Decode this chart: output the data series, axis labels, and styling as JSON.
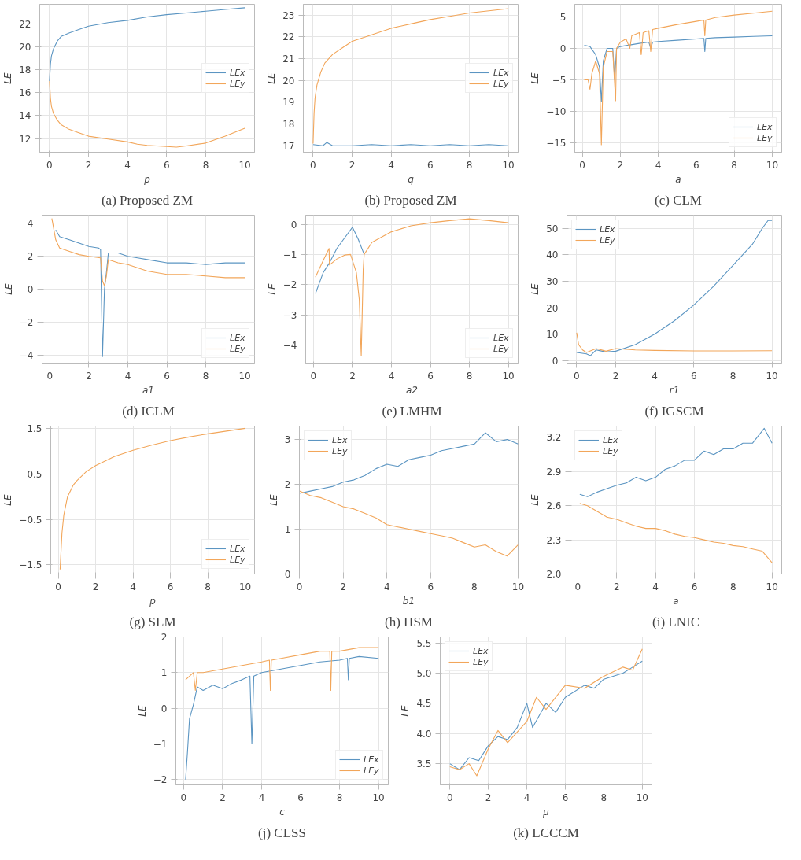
{
  "chart_data": [
    {
      "type": "line",
      "title": "(a) Proposed ZM",
      "xlabel": "p",
      "ylabel": "LE",
      "xlim": [
        -0.5,
        10.5
      ],
      "ylim": [
        10.8,
        23.7
      ],
      "xticks": [
        0,
        2,
        4,
        6,
        8,
        10
      ],
      "yticks": [
        12,
        14,
        16,
        18,
        20,
        22
      ],
      "grid": true,
      "legend": "right",
      "series": [
        {
          "name": "LEx",
          "color": "#5b95c2",
          "x": [
            0,
            0.05,
            0.1,
            0.2,
            0.4,
            0.6,
            1,
            1.5,
            2,
            3,
            4,
            5,
            6,
            7,
            8,
            9,
            10
          ],
          "values": [
            17,
            18.5,
            19.2,
            19.8,
            20.5,
            20.9,
            21.2,
            21.5,
            21.8,
            22.1,
            22.3,
            22.6,
            22.8,
            22.95,
            23.1,
            23.25,
            23.4
          ]
        },
        {
          "name": "LEy",
          "color": "#f2a65a",
          "x": [
            0,
            0.05,
            0.1,
            0.2,
            0.4,
            0.6,
            1,
            1.5,
            2,
            3,
            4,
            4.5,
            5,
            6,
            6.5,
            7,
            8,
            9,
            10
          ],
          "values": [
            17,
            15.5,
            14.8,
            14.2,
            13.6,
            13.2,
            12.8,
            12.5,
            12.2,
            11.95,
            11.7,
            11.5,
            11.4,
            11.3,
            11.25,
            11.35,
            11.6,
            12.2,
            12.9
          ]
        }
      ]
    },
    {
      "type": "line",
      "title": "(b) Proposed ZM",
      "xlabel": "q",
      "ylabel": "LE",
      "xlim": [
        -0.5,
        10.5
      ],
      "ylim": [
        16.7,
        23.5
      ],
      "xticks": [
        0,
        2,
        4,
        6,
        8,
        10
      ],
      "yticks": [
        17,
        18,
        19,
        20,
        21,
        22,
        23
      ],
      "grid": true,
      "legend": "right",
      "series": [
        {
          "name": "LEx",
          "color": "#5b95c2",
          "x": [
            0,
            0.5,
            0.7,
            1,
            2,
            3,
            4,
            5,
            6,
            7,
            8,
            9,
            10
          ],
          "values": [
            17.05,
            17.0,
            17.15,
            17.0,
            17.0,
            17.05,
            17.0,
            17.05,
            17.0,
            17.05,
            17.0,
            17.05,
            17.0
          ]
        },
        {
          "name": "LEy",
          "color": "#f2a65a",
          "x": [
            0,
            0.05,
            0.1,
            0.2,
            0.4,
            0.6,
            1,
            1.5,
            2,
            3,
            4,
            5,
            6,
            7,
            8,
            9,
            10
          ],
          "values": [
            17.1,
            18.5,
            19.2,
            19.8,
            20.4,
            20.8,
            21.2,
            21.5,
            21.8,
            22.1,
            22.4,
            22.6,
            22.8,
            22.95,
            23.1,
            23.2,
            23.3
          ]
        }
      ]
    },
    {
      "type": "line",
      "title": "(c) CLM",
      "xlabel": "a",
      "ylabel": "LE",
      "xlim": [
        -0.4,
        10.5
      ],
      "ylim": [
        -16.5,
        7
      ],
      "xticks": [
        0,
        2,
        4,
        6,
        8,
        10
      ],
      "yticks": [
        -15,
        -10,
        -5,
        0,
        5
      ],
      "grid": true,
      "legend": "bottom right",
      "series": [
        {
          "name": "LEx",
          "color": "#5b95c2",
          "x": [
            0.1,
            0.4,
            0.7,
            0.9,
            1.0,
            1.1,
            1.3,
            1.6,
            1.7,
            1.8,
            2,
            3,
            3.5,
            3.6,
            3.7,
            4,
            5,
            6,
            6.4,
            6.45,
            6.5,
            7,
            8,
            9,
            10
          ],
          "values": [
            0.5,
            0.3,
            -1,
            -3,
            -8.5,
            -2,
            0,
            0,
            -5,
            0,
            0.3,
            0.8,
            1.0,
            0,
            1.0,
            1.1,
            1.3,
            1.5,
            1.6,
            -0.5,
            1.6,
            1.7,
            1.8,
            1.9,
            2.0
          ]
        },
        {
          "name": "LEy",
          "color": "#f2a65a",
          "x": [
            0.1,
            0.3,
            0.4,
            0.5,
            0.7,
            0.9,
            1.0,
            1.1,
            1.3,
            1.6,
            1.75,
            1.8,
            2,
            2.3,
            2.5,
            2.6,
            3,
            3.1,
            3.2,
            3.5,
            3.6,
            3.7,
            4,
            5,
            6,
            6.4,
            6.45,
            6.5,
            7,
            8,
            9,
            10
          ],
          "values": [
            -5,
            -5,
            -6.5,
            -4,
            -2,
            -4,
            -15.3,
            -3,
            -0.5,
            -0.5,
            -8.3,
            0,
            1,
            1.5,
            0,
            2,
            2.5,
            -1,
            2.5,
            2.8,
            -0.5,
            3,
            3.2,
            3.8,
            4.3,
            4.5,
            2,
            4.5,
            4.9,
            5.3,
            5.6,
            5.9
          ]
        }
      ]
    },
    {
      "type": "line",
      "title": "(d) ICLM",
      "xlabel": "a1",
      "ylabel": "LE",
      "xlim": [
        -0.4,
        10.5
      ],
      "ylim": [
        -4.5,
        4.5
      ],
      "xticks": [
        0,
        2,
        4,
        6,
        8,
        10
      ],
      "yticks": [
        -4,
        -2,
        0,
        2,
        4
      ],
      "grid": true,
      "legend": "bottom right",
      "series": [
        {
          "name": "LEx",
          "color": "#5b95c2",
          "x": [
            0.3,
            0.5,
            1,
            1.5,
            2,
            2.5,
            2.6,
            2.7,
            2.8,
            2.9,
            3.0,
            3.5,
            4,
            4.5,
            5,
            6,
            7,
            8,
            9,
            10
          ],
          "values": [
            3.6,
            3.2,
            3.0,
            2.8,
            2.6,
            2.5,
            2.4,
            -4.1,
            0,
            1.0,
            2.2,
            2.2,
            2.0,
            1.9,
            1.8,
            1.6,
            1.6,
            1.5,
            1.6,
            1.6
          ]
        },
        {
          "name": "LEy",
          "color": "#f2a65a",
          "x": [
            0.1,
            0.3,
            0.5,
            1,
            1.5,
            2,
            2.6,
            2.7,
            2.8,
            2.9,
            3.0,
            3.5,
            4,
            5,
            6,
            7,
            8,
            9,
            10
          ],
          "values": [
            4.3,
            3.0,
            2.5,
            2.3,
            2.1,
            2.0,
            1.9,
            0.5,
            0.2,
            0.8,
            1.8,
            1.6,
            1.5,
            1.1,
            0.9,
            0.9,
            0.8,
            0.7,
            0.7
          ]
        }
      ]
    },
    {
      "type": "line",
      "title": "(e) LMHM",
      "xlabel": "a2",
      "ylabel": "LE",
      "xlim": [
        -0.4,
        10.5
      ],
      "ylim": [
        -4.6,
        0.3
      ],
      "xticks": [
        0,
        2,
        4,
        6,
        8,
        10
      ],
      "yticks": [
        -4,
        -3,
        -2,
        -1,
        0
      ],
      "grid": true,
      "legend": "bottom right",
      "series": [
        {
          "name": "LEx",
          "color": "#5b95c2",
          "x": [
            0.1,
            0.5,
            0.8,
            1.2,
            1.6,
            2.0,
            2.3,
            2.6
          ],
          "values": [
            -2.3,
            -1.6,
            -1.3,
            -0.8,
            -0.45,
            -0.1,
            -0.5,
            -1.0
          ]
        },
        {
          "name": "LEy",
          "color": "#f2a65a",
          "x": [
            0.1,
            0.5,
            0.8,
            0.82,
            1.2,
            1.6,
            1.9,
            2.2,
            2.35,
            2.45,
            2.55,
            2.6,
            3,
            4,
            5,
            6,
            7,
            8,
            9,
            10
          ],
          "values": [
            -1.75,
            -1.2,
            -0.8,
            -1.35,
            -1.15,
            -1.02,
            -1.0,
            -1.6,
            -2.5,
            -4.35,
            -1.5,
            -1.0,
            -0.6,
            -0.25,
            -0.05,
            0.05,
            0.12,
            0.18,
            0.12,
            0.05
          ]
        }
      ]
    },
    {
      "type": "line",
      "title": "(f) IGSCM",
      "xlabel": "r1",
      "ylabel": "LE",
      "xlim": [
        -0.5,
        10.5
      ],
      "ylim": [
        -1,
        55
      ],
      "xticks": [
        0,
        2,
        4,
        6,
        8,
        10
      ],
      "yticks": [
        0,
        10,
        20,
        30,
        40,
        50
      ],
      "grid": true,
      "legend": "top left",
      "series": [
        {
          "name": "LEx",
          "color": "#5b95c2",
          "x": [
            0,
            0.5,
            0.7,
            1,
            1.5,
            2,
            3,
            4,
            5,
            6,
            7,
            8,
            9,
            9.5,
            9.8,
            10
          ],
          "values": [
            3,
            2.5,
            1.8,
            4,
            3.2,
            3.5,
            6,
            10,
            15,
            21,
            28,
            36,
            44,
            50,
            53,
            53
          ]
        },
        {
          "name": "LEy",
          "color": "#f2a65a",
          "x": [
            0,
            0.1,
            0.3,
            0.5,
            1,
            1.5,
            2,
            3,
            4,
            6,
            8,
            10
          ],
          "values": [
            10.5,
            6,
            4,
            3,
            4.5,
            3.5,
            4.5,
            4,
            3.8,
            3.6,
            3.6,
            3.7
          ]
        }
      ]
    },
    {
      "type": "line",
      "title": "(g) SLM",
      "xlabel": "p",
      "ylabel": "LE",
      "xlim": [
        -0.4,
        10.5
      ],
      "ylim": [
        -1.7,
        1.55
      ],
      "xticks": [
        0,
        2,
        4,
        6,
        8,
        10
      ],
      "yticks": [
        -1.5,
        -0.5,
        0.5,
        1.5
      ],
      "grid": true,
      "legend": "bottom right",
      "series": [
        {
          "name": "LEx",
          "color": "#5b95c2"
        },
        {
          "name": "LEy",
          "color": "#f2a65a",
          "x": [
            0.1,
            0.15,
            0.2,
            0.3,
            0.5,
            0.8,
            1,
            1.5,
            2,
            3,
            4,
            5,
            6,
            7,
            8,
            9,
            10
          ],
          "values": [
            -1.6,
            -1.2,
            -0.8,
            -0.4,
            0,
            0.25,
            0.35,
            0.55,
            0.68,
            0.88,
            1.02,
            1.13,
            1.23,
            1.31,
            1.38,
            1.44,
            1.5
          ]
        }
      ]
    },
    {
      "type": "line",
      "title": "(h) HSM",
      "xlabel": "b1",
      "ylabel": "LE",
      "xlim": [
        0,
        10
      ],
      "ylim": [
        0,
        3.3
      ],
      "xticks": [
        0,
        2,
        4,
        6,
        8,
        10
      ],
      "yticks": [
        0,
        1,
        2,
        3
      ],
      "grid": true,
      "legend": "top left",
      "series": [
        {
          "name": "LEx",
          "color": "#5b95c2",
          "x": [
            0,
            0.5,
            1,
            1.5,
            2,
            2.5,
            3,
            3.5,
            4,
            4.5,
            5,
            5.5,
            6,
            6.5,
            7,
            7.5,
            8,
            8.5,
            9,
            9.5,
            10
          ],
          "values": [
            1.8,
            1.85,
            1.9,
            1.95,
            2.05,
            2.1,
            2.2,
            2.35,
            2.45,
            2.4,
            2.55,
            2.6,
            2.65,
            2.75,
            2.8,
            2.85,
            2.9,
            3.15,
            2.95,
            3.0,
            2.9
          ]
        },
        {
          "name": "LEy",
          "color": "#f2a65a",
          "x": [
            0,
            0.5,
            1,
            1.5,
            2,
            2.5,
            3,
            3.5,
            4,
            4.5,
            5,
            5.5,
            6,
            6.5,
            7,
            7.5,
            8,
            8.5,
            9,
            9.5,
            10
          ],
          "values": [
            1.85,
            1.75,
            1.7,
            1.6,
            1.5,
            1.45,
            1.35,
            1.25,
            1.1,
            1.05,
            1.0,
            0.95,
            0.9,
            0.85,
            0.8,
            0.7,
            0.6,
            0.65,
            0.5,
            0.4,
            0.65
          ]
        }
      ]
    },
    {
      "type": "line",
      "title": "(i) LNIC",
      "xlabel": "a",
      "ylabel": "LE",
      "xlim": [
        -0.4,
        10.5
      ],
      "ylim": [
        2.0,
        3.3
      ],
      "xticks": [
        0,
        2,
        4,
        6,
        8,
        10
      ],
      "yticks": [
        {
          "value": 2.0,
          "label": "2.0"
        },
        2.3,
        2.6,
        2.9,
        3.2
      ],
      "grid": true,
      "legend": "top left",
      "series": [
        {
          "name": "LEx",
          "color": "#5b95c2",
          "x": [
            0.1,
            0.5,
            1,
            1.5,
            2,
            2.5,
            3,
            3.5,
            4,
            4.5,
            5,
            5.5,
            6,
            6.5,
            7,
            7.5,
            8,
            8.5,
            9,
            9.6,
            10
          ],
          "values": [
            2.7,
            2.68,
            2.72,
            2.75,
            2.78,
            2.8,
            2.85,
            2.82,
            2.85,
            2.92,
            2.95,
            3.0,
            3.0,
            3.08,
            3.05,
            3.1,
            3.1,
            3.15,
            3.15,
            3.28,
            3.15
          ]
        },
        {
          "name": "LEy",
          "color": "#f2a65a",
          "x": [
            0.1,
            0.5,
            1,
            1.5,
            2,
            2.5,
            3,
            3.5,
            4,
            4.5,
            5,
            5.5,
            6,
            6.5,
            7,
            7.5,
            8,
            8.5,
            9,
            9.5,
            10
          ],
          "values": [
            2.62,
            2.6,
            2.55,
            2.5,
            2.48,
            2.45,
            2.42,
            2.4,
            2.4,
            2.38,
            2.35,
            2.33,
            2.32,
            2.3,
            2.28,
            2.27,
            2.25,
            2.24,
            2.22,
            2.2,
            2.1
          ]
        }
      ]
    },
    {
      "type": "line",
      "title": "(j) CLSS",
      "xlabel": "c",
      "ylabel": "LE",
      "xlim": [
        -0.4,
        10.5
      ],
      "ylim": [
        -2.15,
        2.0
      ],
      "xticks": [
        0,
        2,
        4,
        6,
        8,
        10
      ],
      "yticks": [
        -2,
        -1,
        0,
        1,
        2
      ],
      "grid": true,
      "legend": "bottom right",
      "series": [
        {
          "name": "LEx",
          "color": "#5b95c2",
          "x": [
            0.1,
            0.2,
            0.3,
            0.5,
            0.7,
            1,
            1.5,
            2,
            2.5,
            3,
            3.4,
            3.5,
            3.6,
            4,
            5,
            6,
            7,
            8,
            8.4,
            8.45,
            8.5,
            9,
            10
          ],
          "values": [
            -2,
            -1.2,
            -0.3,
            0.1,
            0.6,
            0.5,
            0.65,
            0.55,
            0.7,
            0.8,
            0.9,
            -1.0,
            0.9,
            1.0,
            1.1,
            1.2,
            1.3,
            1.35,
            1.4,
            0.8,
            1.4,
            1.45,
            1.4
          ]
        },
        {
          "name": "LEy",
          "color": "#f2a65a",
          "x": [
            0.1,
            0.3,
            0.5,
            0.6,
            0.7,
            1,
            2,
            3,
            4,
            4.4,
            4.45,
            4.5,
            5,
            6,
            7,
            7.5,
            7.55,
            7.6,
            8,
            9,
            10
          ],
          "values": [
            0.8,
            0.9,
            1.0,
            0.5,
            1.0,
            1.0,
            1.1,
            1.2,
            1.3,
            1.35,
            0.5,
            1.35,
            1.4,
            1.5,
            1.6,
            1.6,
            0.5,
            1.6,
            1.6,
            1.7,
            1.7
          ]
        }
      ]
    },
    {
      "type": "line",
      "title": "(k) LCCCM",
      "xlabel": "μ",
      "ylabel": "LE",
      "xlim": [
        -0.5,
        10.5
      ],
      "ylim": [
        3.15,
        5.6
      ],
      "xticks": [
        0,
        2,
        4,
        6,
        8,
        10
      ],
      "yticks": [
        3.5,
        {
          "value": 4.0,
          "label": "4.0"
        },
        4.5,
        {
          "value": 5.0,
          "label": "5.0"
        },
        5.5
      ],
      "grid": true,
      "legend": "top left",
      "series": [
        {
          "name": "LEx",
          "color": "#5b95c2",
          "x": [
            0,
            0.5,
            1,
            1.5,
            2,
            2.5,
            3,
            3.5,
            4,
            4.3,
            5,
            5.5,
            6,
            7,
            7.5,
            8,
            9,
            9.5,
            10
          ],
          "values": [
            3.5,
            3.4,
            3.6,
            3.55,
            3.8,
            3.95,
            3.9,
            4.1,
            4.5,
            4.1,
            4.5,
            4.35,
            4.6,
            4.8,
            4.75,
            4.9,
            5.0,
            5.1,
            5.2
          ]
        },
        {
          "name": "LEy",
          "color": "#f2a65a",
          "x": [
            0,
            0.5,
            1,
            1.4,
            2,
            2.5,
            3,
            4,
            4.5,
            5,
            6,
            7,
            8,
            9,
            9.5,
            10
          ],
          "values": [
            3.45,
            3.4,
            3.5,
            3.3,
            3.75,
            4.05,
            3.85,
            4.2,
            4.6,
            4.4,
            4.8,
            4.75,
            4.95,
            5.1,
            5.05,
            5.4
          ]
        }
      ]
    }
  ]
}
